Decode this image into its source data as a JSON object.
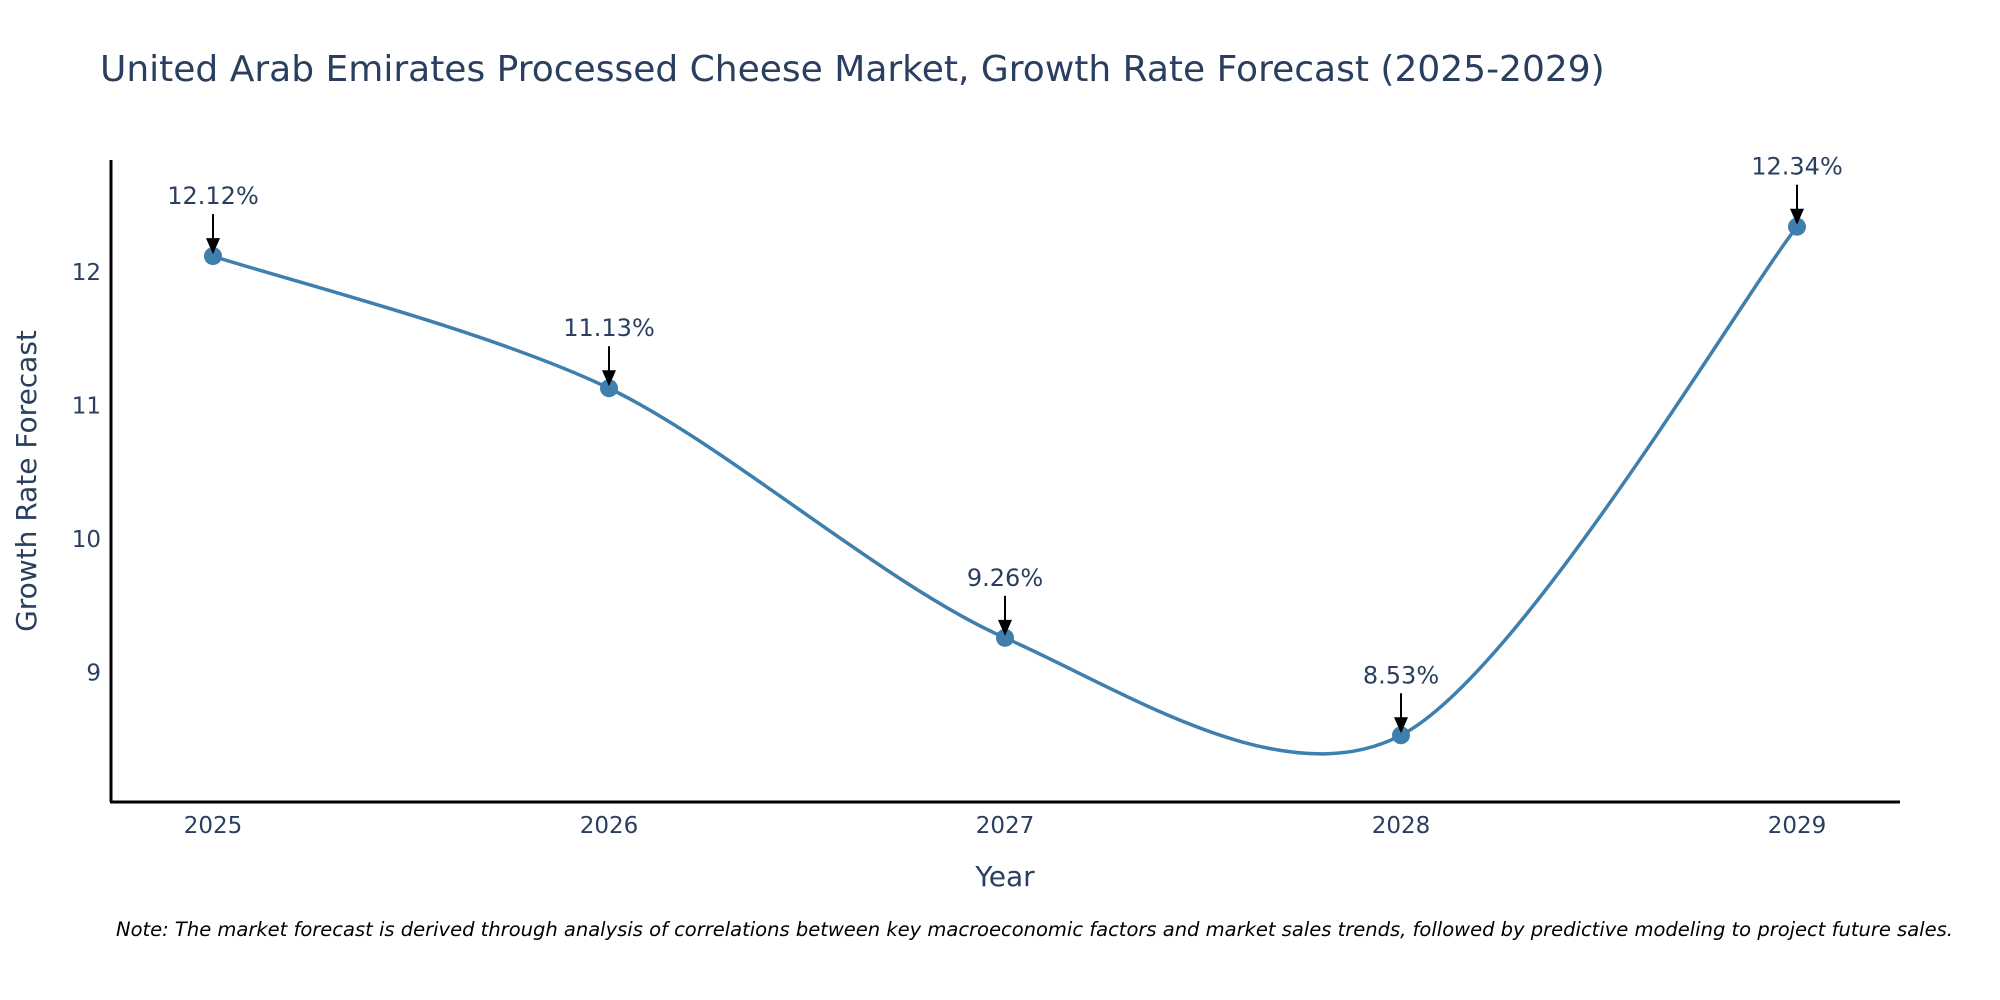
{
  "chart_data": {
    "type": "line",
    "title": "United Arab Emirates Processed Cheese Market, Growth Rate Forecast (2025-2029)",
    "xlabel": "Year",
    "ylabel": "Growth Rate Forecast",
    "categories": [
      "2025",
      "2026",
      "2027",
      "2028",
      "2029"
    ],
    "series": [
      {
        "name": "Growth Rate Forecast",
        "values": [
          12.12,
          11.13,
          9.26,
          8.53,
          12.34
        ],
        "labels": [
          "12.12%",
          "11.13%",
          "9.26%",
          "8.53%",
          "12.34%"
        ]
      }
    ],
    "yticks": [
      "9",
      "10",
      "11",
      "12"
    ],
    "ylim": [
      8.03,
      12.84
    ],
    "grid": false,
    "line_shape": "spline",
    "line_color": "#3f7fae",
    "marker_color": "#3f7fae"
  },
  "note": "Note: The market forecast is derived through analysis of correlations between key macroeconomic factors and market sales trends, followed by predictive modeling to project future sales."
}
